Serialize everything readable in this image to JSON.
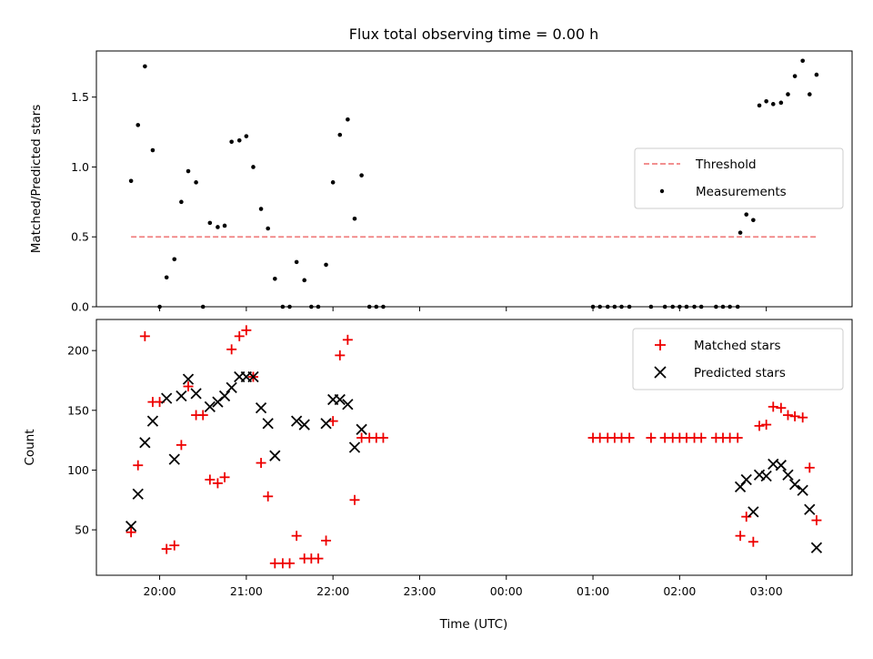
{
  "colors": {
    "threshold": "#f08080",
    "matched": "#ee0000",
    "predicted": "#000000",
    "measurement": "#000000"
  },
  "chart_data": [
    {
      "type": "scatter",
      "title": "Flux total observing time = 0.00 h",
      "xlabel": "",
      "ylabel": "Matched/Predicted stars",
      "ylim": [
        0,
        1.83
      ],
      "xlim": [
        -0.73,
        7.99
      ],
      "yticks": [
        0.0,
        0.5,
        1.0,
        1.5
      ],
      "ytick_labels": [
        "0.0",
        "0.5",
        "1.0",
        "1.5"
      ],
      "xticks": [
        0,
        1,
        2,
        3,
        4,
        5,
        6,
        7
      ],
      "grid": false,
      "legend_position": "center-right",
      "threshold": {
        "name": "Threshold",
        "value": 0.5,
        "x_range": [
          -0.33,
          7.6
        ]
      },
      "series": [
        {
          "name": "Measurements",
          "marker": "dot",
          "points": [
            [
              -0.33,
              0.9
            ],
            [
              -0.25,
              1.3
            ],
            [
              -0.17,
              1.72
            ],
            [
              -0.08,
              1.12
            ],
            [
              0.0,
              0.0
            ],
            [
              0.08,
              0.21
            ],
            [
              0.17,
              0.34
            ],
            [
              0.25,
              0.75
            ],
            [
              0.33,
              0.97
            ],
            [
              0.42,
              0.89
            ],
            [
              0.5,
              0.0
            ],
            [
              0.58,
              0.6
            ],
            [
              0.67,
              0.57
            ],
            [
              0.75,
              0.58
            ],
            [
              0.83,
              1.18
            ],
            [
              0.92,
              1.19
            ],
            [
              1.0,
              1.22
            ],
            [
              1.08,
              1.0
            ],
            [
              1.17,
              0.7
            ],
            [
              1.25,
              0.56
            ],
            [
              1.33,
              0.2
            ],
            [
              1.42,
              0.0
            ],
            [
              1.5,
              0.0
            ],
            [
              1.58,
              0.32
            ],
            [
              1.67,
              0.19
            ],
            [
              1.75,
              0.0
            ],
            [
              1.83,
              0.0
            ],
            [
              1.92,
              0.3
            ],
            [
              2.0,
              0.89
            ],
            [
              2.08,
              1.23
            ],
            [
              2.17,
              1.34
            ],
            [
              2.25,
              0.63
            ],
            [
              2.33,
              0.94
            ],
            [
              2.42,
              0.0
            ],
            [
              2.5,
              0.0
            ],
            [
              2.58,
              0.0
            ],
            [
              5.0,
              0.0
            ],
            [
              5.08,
              0.0
            ],
            [
              5.17,
              0.0
            ],
            [
              5.25,
              0.0
            ],
            [
              5.33,
              0.0
            ],
            [
              5.42,
              0.0
            ],
            [
              5.67,
              0.0
            ],
            [
              5.83,
              0.0
            ],
            [
              5.92,
              0.0
            ],
            [
              6.0,
              0.0
            ],
            [
              6.08,
              0.0
            ],
            [
              6.17,
              0.0
            ],
            [
              6.25,
              0.0
            ],
            [
              6.42,
              0.0
            ],
            [
              6.5,
              0.0
            ],
            [
              6.58,
              0.0
            ],
            [
              6.67,
              0.0
            ],
            [
              6.7,
              0.53
            ],
            [
              6.77,
              0.66
            ],
            [
              6.85,
              0.62
            ],
            [
              6.92,
              1.44
            ],
            [
              7.0,
              1.47
            ],
            [
              7.08,
              1.45
            ],
            [
              7.17,
              1.46
            ],
            [
              7.25,
              1.52
            ],
            [
              7.33,
              1.65
            ],
            [
              7.42,
              1.76
            ],
            [
              7.5,
              1.52
            ],
            [
              7.58,
              1.66
            ]
          ]
        }
      ]
    },
    {
      "type": "scatter",
      "title": "",
      "xlabel": "Time (UTC)",
      "ylabel": "Count",
      "ylim": [
        12,
        226
      ],
      "xlim": [
        -0.73,
        7.99
      ],
      "yticks": [
        50,
        100,
        150,
        200
      ],
      "xticks": [
        0,
        1,
        2,
        3,
        4,
        5,
        6,
        7
      ],
      "xtick_labels": [
        "20:00",
        "21:00",
        "22:00",
        "23:00",
        "00:00",
        "01:00",
        "02:00",
        "03:00"
      ],
      "grid": false,
      "legend_position": "top-right",
      "series": [
        {
          "name": "Matched stars",
          "marker": "plus",
          "points": [
            [
              -0.33,
              48
            ],
            [
              -0.25,
              104
            ],
            [
              -0.17,
              212
            ],
            [
              -0.08,
              157
            ],
            [
              0.0,
              157
            ],
            [
              0.08,
              34
            ],
            [
              0.17,
              37
            ],
            [
              0.25,
              121
            ],
            [
              0.33,
              170
            ],
            [
              0.42,
              146
            ],
            [
              0.5,
              146
            ],
            [
              0.58,
              92
            ],
            [
              0.67,
              89
            ],
            [
              0.75,
              94
            ],
            [
              0.83,
              201
            ],
            [
              0.92,
              212
            ],
            [
              1.0,
              217
            ],
            [
              1.08,
              178
            ],
            [
              1.17,
              106
            ],
            [
              1.25,
              78
            ],
            [
              1.33,
              22
            ],
            [
              1.42,
              22
            ],
            [
              1.5,
              22
            ],
            [
              1.58,
              45
            ],
            [
              1.67,
              26
            ],
            [
              1.75,
              26
            ],
            [
              1.83,
              26
            ],
            [
              1.92,
              41
            ],
            [
              2.0,
              141
            ],
            [
              2.08,
              196
            ],
            [
              2.17,
              209
            ],
            [
              2.25,
              75
            ],
            [
              2.33,
              127
            ],
            [
              2.42,
              127
            ],
            [
              2.5,
              127
            ],
            [
              2.58,
              127
            ],
            [
              5.0,
              127
            ],
            [
              5.08,
              127
            ],
            [
              5.17,
              127
            ],
            [
              5.25,
              127
            ],
            [
              5.33,
              127
            ],
            [
              5.42,
              127
            ],
            [
              5.67,
              127
            ],
            [
              5.83,
              127
            ],
            [
              5.92,
              127
            ],
            [
              6.0,
              127
            ],
            [
              6.08,
              127
            ],
            [
              6.17,
              127
            ],
            [
              6.25,
              127
            ],
            [
              6.42,
              127
            ],
            [
              6.5,
              127
            ],
            [
              6.58,
              127
            ],
            [
              6.67,
              127
            ],
            [
              6.7,
              45
            ],
            [
              6.77,
              61
            ],
            [
              6.85,
              40
            ],
            [
              6.92,
              137
            ],
            [
              7.0,
              138
            ],
            [
              7.08,
              153
            ],
            [
              7.17,
              152
            ],
            [
              7.25,
              146
            ],
            [
              7.33,
              145
            ],
            [
              7.42,
              144
            ],
            [
              7.5,
              102
            ],
            [
              7.58,
              58
            ]
          ]
        },
        {
          "name": "Predicted stars",
          "marker": "x",
          "points": [
            [
              -0.33,
              53
            ],
            [
              -0.25,
              80
            ],
            [
              -0.17,
              123
            ],
            [
              -0.08,
              141
            ],
            [
              0.08,
              160
            ],
            [
              0.17,
              109
            ],
            [
              0.25,
              162
            ],
            [
              0.33,
              176
            ],
            [
              0.42,
              164
            ],
            [
              0.58,
              153
            ],
            [
              0.67,
              157
            ],
            [
              0.75,
              162
            ],
            [
              0.83,
              169
            ],
            [
              0.92,
              178
            ],
            [
              1.0,
              178
            ],
            [
              1.08,
              178
            ],
            [
              1.17,
              152
            ],
            [
              1.25,
              139
            ],
            [
              1.33,
              112
            ],
            [
              1.58,
              141
            ],
            [
              1.67,
              138
            ],
            [
              1.92,
              139
            ],
            [
              2.0,
              159
            ],
            [
              2.08,
              159
            ],
            [
              2.17,
              155
            ],
            [
              2.25,
              119
            ],
            [
              2.33,
              134
            ],
            [
              6.7,
              86
            ],
            [
              6.77,
              92
            ],
            [
              6.85,
              65
            ],
            [
              6.92,
              96
            ],
            [
              7.0,
              95
            ],
            [
              7.08,
              105
            ],
            [
              7.17,
              104
            ],
            [
              7.25,
              96
            ],
            [
              7.33,
              88
            ],
            [
              7.42,
              83
            ],
            [
              7.5,
              67
            ],
            [
              7.58,
              35
            ]
          ]
        }
      ]
    }
  ]
}
